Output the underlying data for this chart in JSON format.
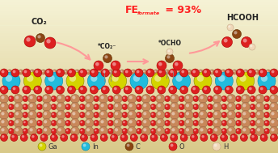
{
  "bg_color": "#f0eecc",
  "title_color": "#ff2020",
  "co2_label": "CO₂",
  "hcooh_label": "HCOOH",
  "intermediate1": "*CO₂⁻",
  "intermediate2": "*OCHO",
  "ga_color": "#d4d400",
  "ga_edge": "#888800",
  "in_color": "#22bbdd",
  "in_edge": "#0088aa",
  "metal_color": "#c8885a",
  "metal_edge": "#996644",
  "ox_color": "#dd2020",
  "ox_edge": "#aa0000",
  "carbon_color": "#8B4513",
  "carbon_edge": "#5c2e00",
  "h_color": "#f0d8b8",
  "h_edge": "#c8a888",
  "legend_items": [
    {
      "label": "Ga",
      "color": "#d4d400",
      "edge": "#888800"
    },
    {
      "label": "In",
      "color": "#22bbdd",
      "edge": "#0088aa"
    },
    {
      "label": "C",
      "color": "#8B4513",
      "edge": "#5c2e00"
    },
    {
      "label": "O",
      "color": "#dd2020",
      "edge": "#aa0000"
    },
    {
      "label": "H",
      "color": "#f0d8b8",
      "edge": "#c8a888"
    }
  ]
}
